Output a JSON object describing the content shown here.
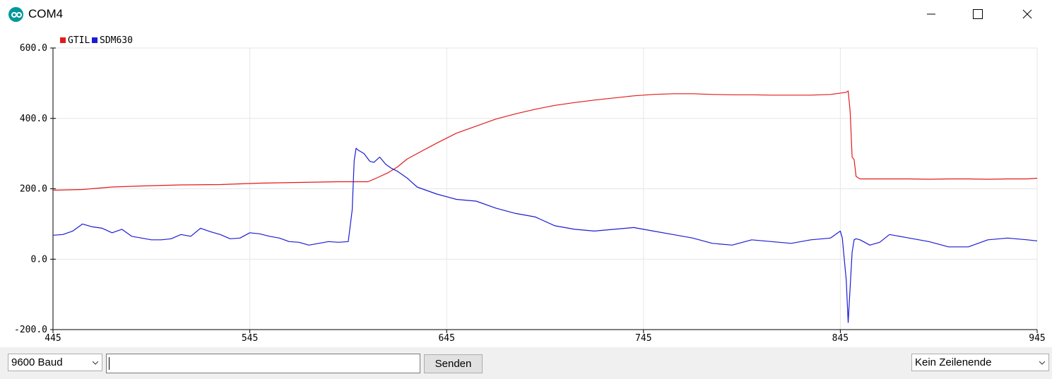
{
  "window": {
    "title": "COM4"
  },
  "toolbar": {
    "baud_value": "9600 Baud",
    "send_input_value": "",
    "send_label": "Senden",
    "line_ending_value": "Kein Zeilenende"
  },
  "chart_data": {
    "type": "line",
    "title": "",
    "xlabel": "",
    "ylabel": "",
    "xlim": [
      445,
      945
    ],
    "ylim": [
      -200,
      600
    ],
    "x_ticks": [
      "445",
      "545",
      "645",
      "745",
      "845",
      "945"
    ],
    "y_ticks": [
      "600.0",
      "400.0",
      "200.0",
      "0.0",
      "-200.0"
    ],
    "grid": true,
    "legend_position": "top-left",
    "series": [
      {
        "name": "GTIL",
        "color": "#e31a1c",
        "x": [
          445,
          460,
          475,
          490,
          510,
          530,
          550,
          570,
          590,
          600,
          605,
          610,
          615,
          620,
          625,
          630,
          640,
          650,
          660,
          670,
          680,
          690,
          700,
          710,
          720,
          730,
          740,
          750,
          760,
          770,
          780,
          790,
          800,
          810,
          820,
          830,
          840,
          848,
          849,
          850,
          851,
          852,
          853,
          855,
          860,
          870,
          880,
          890,
          900,
          910,
          920,
          930,
          940,
          945
        ],
        "y": [
          196,
          198,
          205,
          208,
          211,
          212,
          216,
          218,
          220,
          220,
          220,
          232,
          245,
          262,
          285,
          300,
          330,
          358,
          378,
          398,
          413,
          426,
          437,
          445,
          452,
          458,
          464,
          468,
          470,
          470,
          468,
          467,
          467,
          466,
          466,
          466,
          468,
          474,
          478,
          420,
          290,
          283,
          235,
          228,
          228,
          228,
          228,
          227,
          228,
          228,
          227,
          228,
          228,
          230
        ]
      },
      {
        "name": "SDM630",
        "color": "#1c1cd4",
        "x": [
          445,
          450,
          455,
          460,
          465,
          470,
          475,
          480,
          485,
          490,
          495,
          500,
          505,
          510,
          515,
          520,
          525,
          530,
          535,
          540,
          545,
          550,
          555,
          560,
          565,
          570,
          575,
          580,
          585,
          590,
          595,
          597,
          598,
          599,
          600,
          603,
          606,
          608,
          611,
          614,
          617,
          620,
          625,
          630,
          640,
          650,
          660,
          670,
          680,
          690,
          700,
          710,
          720,
          730,
          740,
          750,
          760,
          770,
          780,
          790,
          800,
          810,
          820,
          830,
          840,
          845,
          846,
          848,
          849,
          850,
          851,
          852,
          853,
          855,
          860,
          865,
          870,
          880,
          890,
          900,
          910,
          920,
          930,
          940,
          945
        ],
        "y": [
          68,
          70,
          80,
          100,
          92,
          88,
          75,
          85,
          65,
          60,
          55,
          55,
          58,
          70,
          65,
          88,
          78,
          70,
          58,
          60,
          75,
          72,
          65,
          60,
          50,
          48,
          40,
          45,
          50,
          48,
          50,
          140,
          280,
          315,
          310,
          300,
          278,
          275,
          290,
          270,
          258,
          250,
          230,
          205,
          185,
          170,
          165,
          145,
          130,
          120,
          95,
          85,
          80,
          85,
          90,
          80,
          70,
          60,
          45,
          40,
          55,
          50,
          45,
          55,
          60,
          80,
          60,
          -60,
          -180,
          -80,
          20,
          55,
          58,
          55,
          40,
          48,
          70,
          60,
          50,
          35,
          35,
          55,
          60,
          55,
          52
        ]
      }
    ]
  }
}
